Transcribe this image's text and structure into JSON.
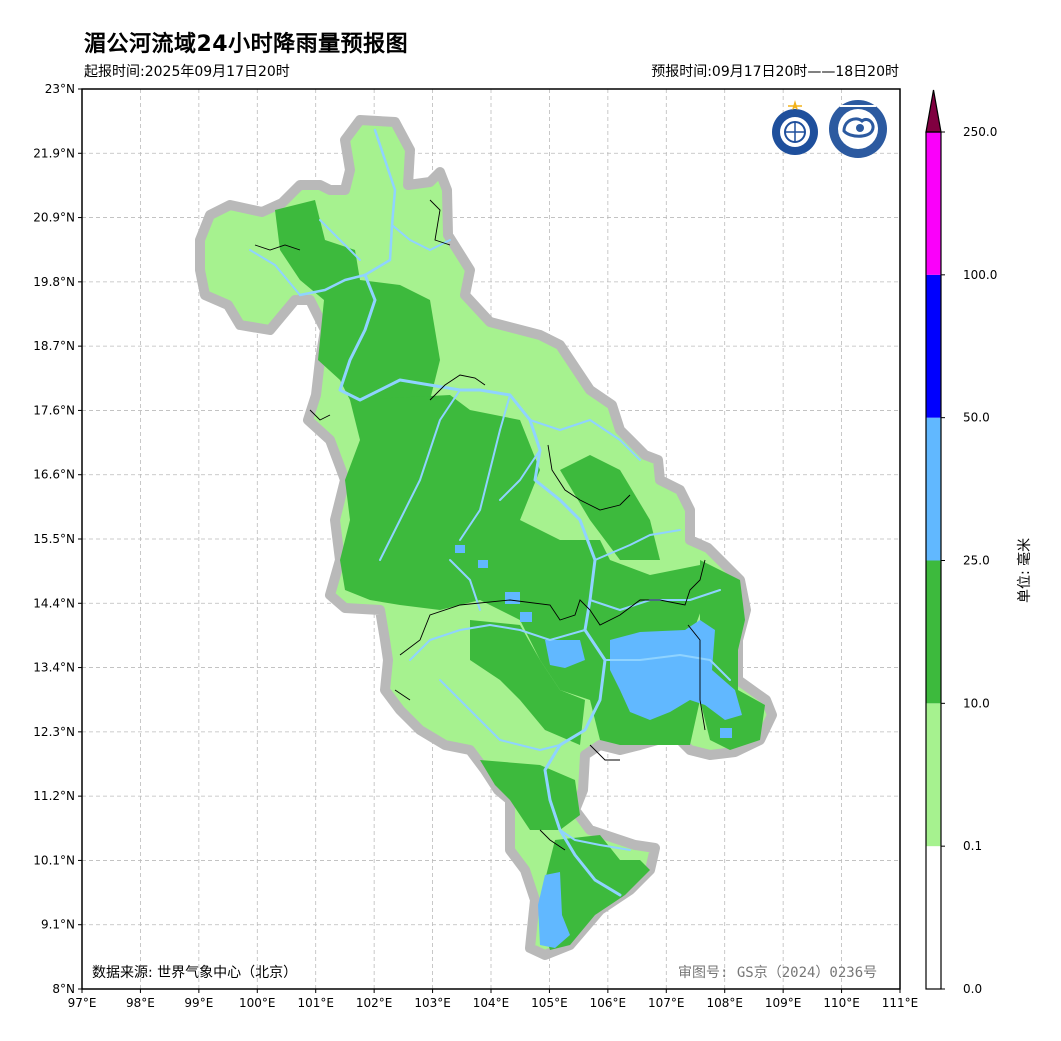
{
  "title": "湄公河流域24小时降雨量预报图",
  "issue_time": "起报时间:2025年09月17日20时",
  "valid_time": "预报时间:09月17日20时——18日20时",
  "data_source": "数据来源: 世界气象中心（北京）",
  "review_no": "审图号: GS京（2024）0236号",
  "colorbar_unit": "单位: 毫米",
  "x_ticks": [
    "97°E",
    "98°E",
    "99°E",
    "100°E",
    "101°E",
    "102°E",
    "103°E",
    "104°E",
    "105°E",
    "106°E",
    "107°E",
    "108°E",
    "109°E",
    "110°E",
    "111°E"
  ],
  "y_ticks": [
    "23°N",
    "21.9°N",
    "20.9°N",
    "19.8°N",
    "18.7°N",
    "17.6°N",
    "16.6°N",
    "15.5°N",
    "14.4°N",
    "13.4°N",
    "12.3°N",
    "11.2°N",
    "10.1°N",
    "9.1°N",
    "8°N"
  ],
  "legend": [
    {
      "label": "0.0",
      "color": "#ffffff"
    },
    {
      "label": "0.1",
      "color": "#a6f28f"
    },
    {
      "label": "10.0",
      "color": "#3dba3d"
    },
    {
      "label": "25.0",
      "color": "#61b8ff"
    },
    {
      "label": "50.0",
      "color": "#0000fe"
    },
    {
      "label": "100.0",
      "color": "#fa00fa"
    },
    {
      "label": "250.0",
      "color": "#800040"
    }
  ],
  "logos": [
    "wmo-emblem",
    "cma-emblem"
  ]
}
